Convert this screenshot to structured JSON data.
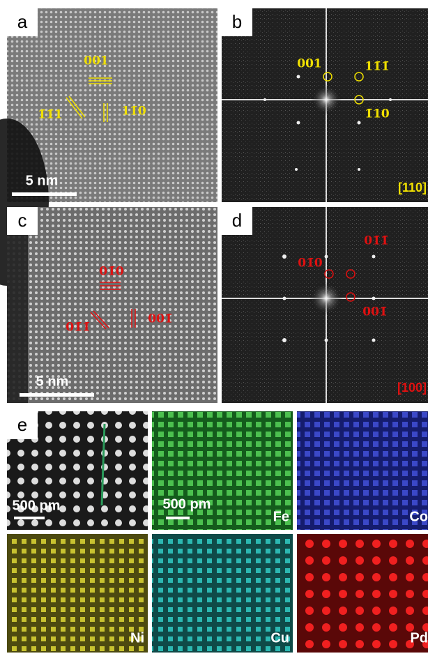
{
  "panels": [
    {
      "label": "a",
      "annotations": [
        "001",
        "1̄1̄1",
        "11̄0"
      ],
      "scale_bar": "5 nm"
    },
    {
      "label": "b",
      "annotations": [
        "001",
        "11̄1̄",
        "1̄10"
      ],
      "zone_axis": "[110]"
    },
    {
      "label": "c",
      "annotations": [
        "01̄0",
        "01̄1̄",
        "001̄"
      ],
      "scale_bar": "5 nm"
    },
    {
      "label": "d",
      "annotations": [
        "01̄0",
        "01̄1̄",
        "001̄"
      ],
      "zone_axis": "[100]"
    },
    {
      "label": "e",
      "scale_bars": [
        "500 pm",
        "500 pm"
      ],
      "elements": [
        "Fe",
        "Co",
        "Ni",
        "Cu",
        "Pd"
      ]
    }
  ]
}
